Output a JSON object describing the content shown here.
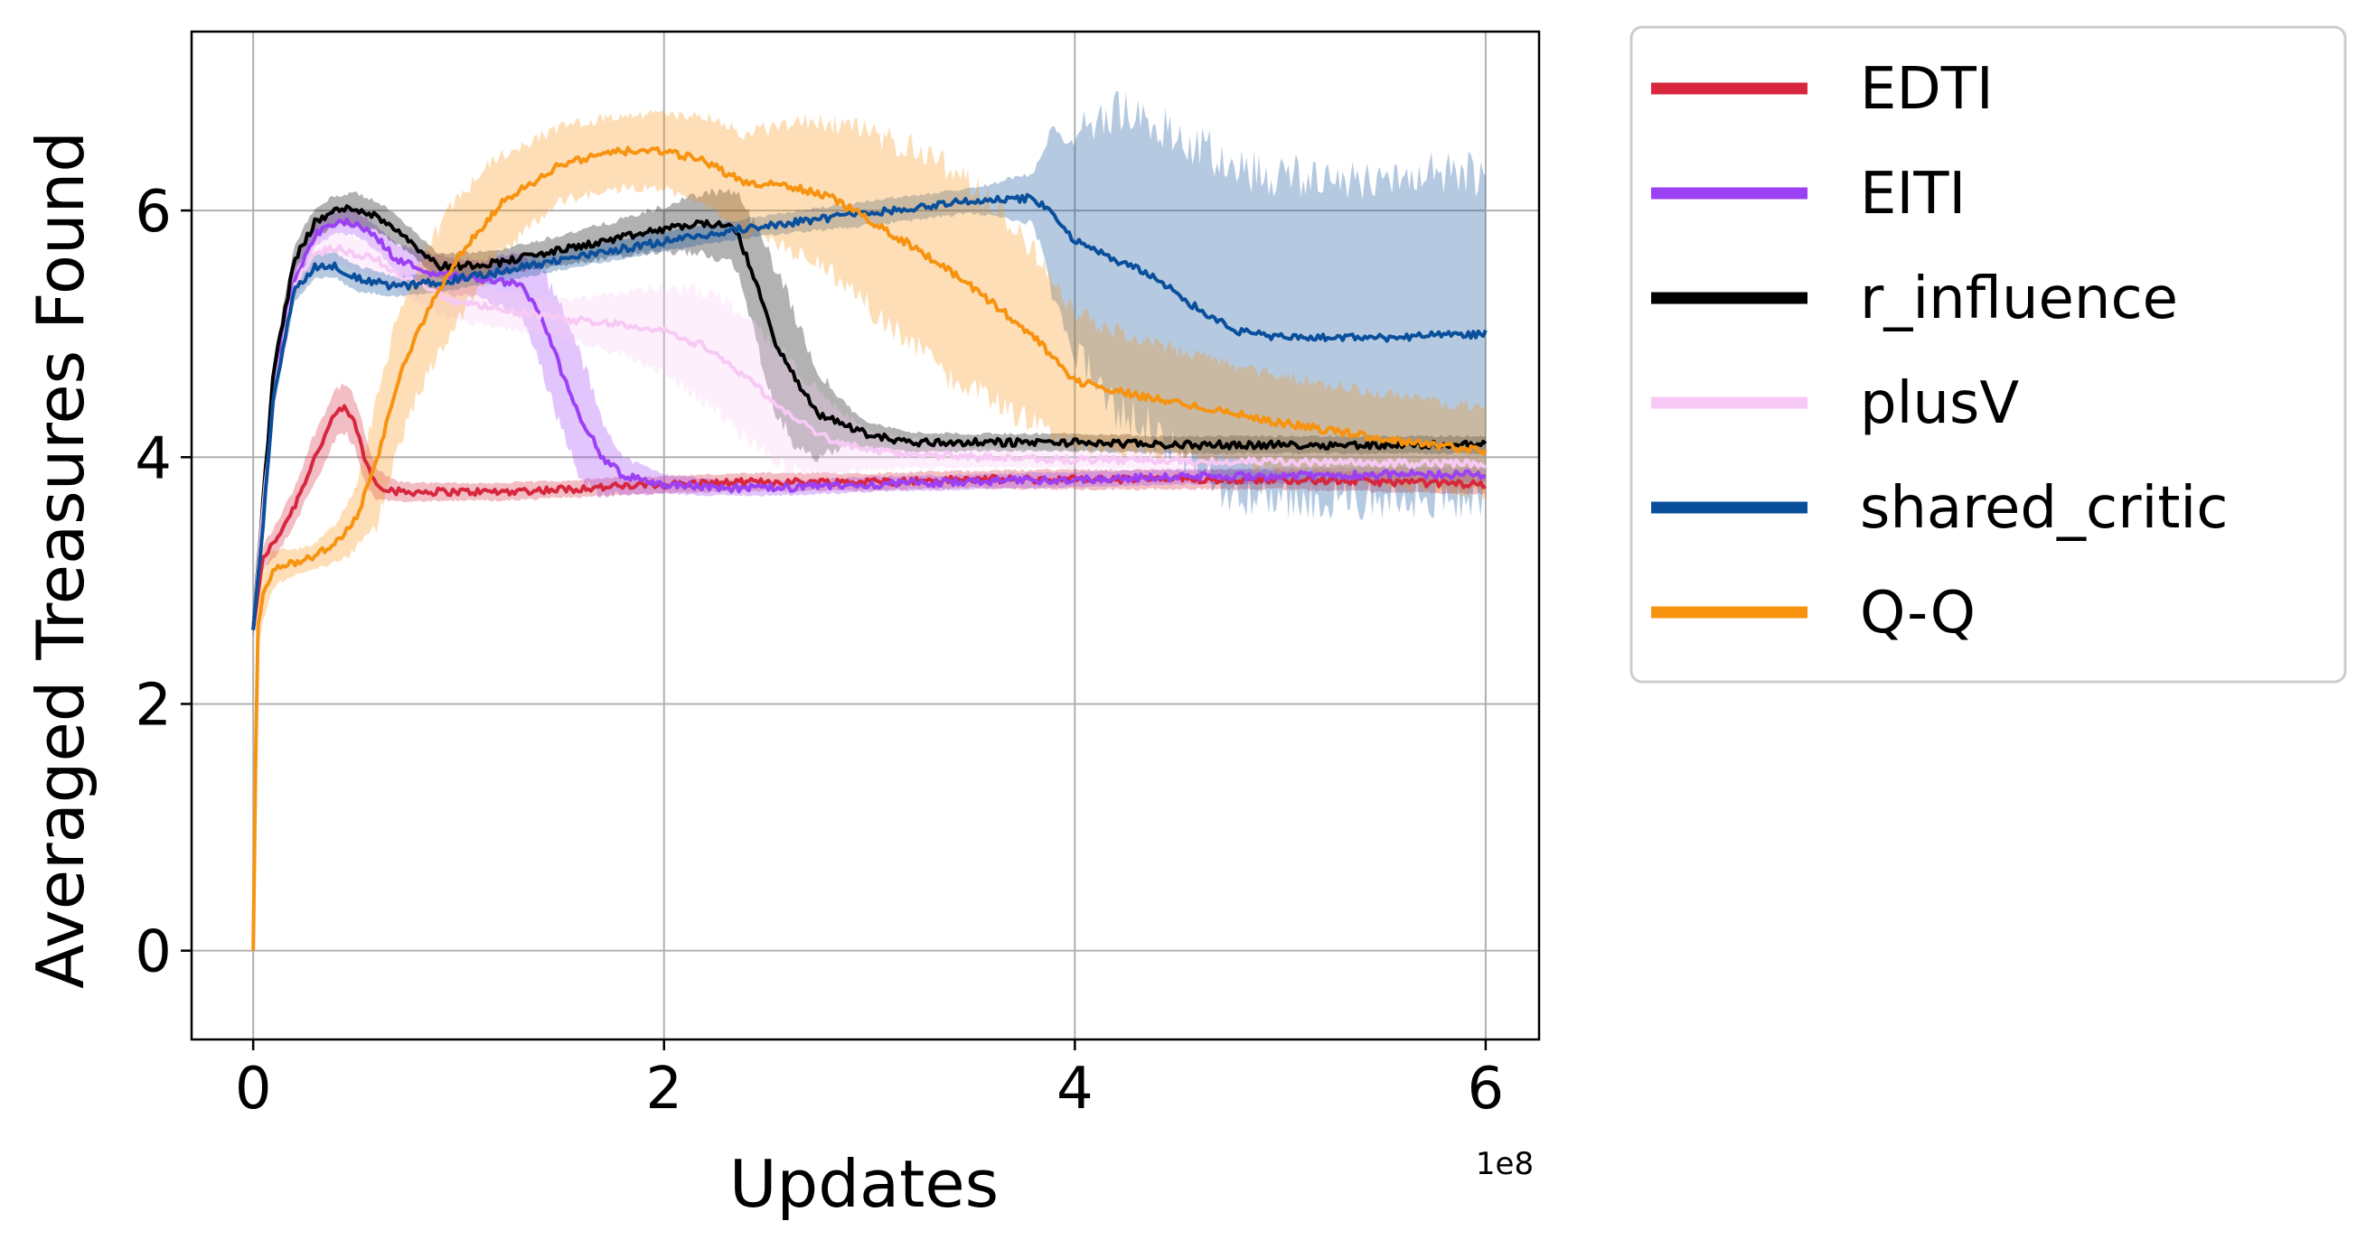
{
  "chart_data": {
    "type": "line",
    "title": "",
    "xlabel": "Updates",
    "ylabel": "Averaged Treasures Found",
    "x_offset_label": "1e8",
    "xlim": [
      -0.3,
      6.26
    ],
    "ylim": [
      -0.72,
      7.45
    ],
    "xticks": [
      0,
      2,
      4,
      6
    ],
    "xtick_labels": [
      "0",
      "2",
      "4",
      "6"
    ],
    "yticks": [
      0,
      2,
      4,
      6
    ],
    "ytick_labels": [
      "0",
      "2",
      "4",
      "6"
    ],
    "grid": true,
    "legend_position": "outside-right",
    "shaded_band": "variation across runs",
    "series": [
      {
        "name": "EDTI",
        "color": "#d7263d",
        "x": [
          0,
          0.05,
          0.1,
          0.2,
          0.3,
          0.4,
          0.45,
          0.5,
          0.55,
          0.6,
          0.7,
          0.9,
          1.2,
          1.5,
          2,
          2.5,
          3,
          3.5,
          4,
          4.5,
          5,
          5.5,
          6
        ],
        "y": [
          2.6,
          3.2,
          3.3,
          3.6,
          4.0,
          4.35,
          4.4,
          4.25,
          3.95,
          3.78,
          3.72,
          3.72,
          3.72,
          3.74,
          3.78,
          3.8,
          3.8,
          3.82,
          3.82,
          3.82,
          3.82,
          3.8,
          3.78
        ],
        "band": [
          0.05,
          0.1,
          0.12,
          0.15,
          0.2,
          0.2,
          0.2,
          0.2,
          0.2,
          0.12,
          0.08,
          0.07,
          0.07,
          0.07,
          0.07,
          0.07,
          0.07,
          0.07,
          0.08,
          0.08,
          0.08,
          0.08,
          0.08
        ]
      },
      {
        "name": "EITI",
        "color": "#9b40f5",
        "x": [
          0,
          0.05,
          0.1,
          0.2,
          0.3,
          0.4,
          0.5,
          0.6,
          0.7,
          0.9,
          1.1,
          1.3,
          1.4,
          1.5,
          1.6,
          1.7,
          1.8,
          2,
          2.3,
          2.6,
          3,
          3.5,
          4,
          4.5,
          5,
          5.5,
          6
        ],
        "y": [
          2.6,
          3.6,
          4.6,
          5.45,
          5.8,
          5.9,
          5.9,
          5.78,
          5.6,
          5.48,
          5.45,
          5.4,
          5.15,
          4.7,
          4.3,
          4.0,
          3.85,
          3.78,
          3.75,
          3.75,
          3.78,
          3.8,
          3.82,
          3.84,
          3.85,
          3.86,
          3.86
        ],
        "band": [
          0.05,
          0.15,
          0.15,
          0.12,
          0.1,
          0.08,
          0.1,
          0.1,
          0.12,
          0.15,
          0.15,
          0.25,
          0.4,
          0.5,
          0.5,
          0.3,
          0.15,
          0.08,
          0.06,
          0.06,
          0.06,
          0.06,
          0.06,
          0.06,
          0.06,
          0.06,
          0.06
        ]
      },
      {
        "name": "r_influence",
        "color": "#000000",
        "x": [
          0,
          0.05,
          0.1,
          0.2,
          0.3,
          0.4,
          0.5,
          0.6,
          0.7,
          0.8,
          0.9,
          1.0,
          1.2,
          1.5,
          1.8,
          2.0,
          2.2,
          2.35,
          2.45,
          2.55,
          2.65,
          2.75,
          2.9,
          3.0,
          3.2,
          3.5,
          4.0,
          4.5,
          5.0,
          5.5,
          6.0
        ],
        "y": [
          2.6,
          3.7,
          4.7,
          5.6,
          5.9,
          6.0,
          6.02,
          5.95,
          5.85,
          5.7,
          5.55,
          5.55,
          5.58,
          5.68,
          5.78,
          5.85,
          5.9,
          5.85,
          5.4,
          4.9,
          4.6,
          4.35,
          4.25,
          4.18,
          4.12,
          4.12,
          4.12,
          4.1,
          4.1,
          4.1,
          4.1
        ],
        "band": [
          0.05,
          0.1,
          0.1,
          0.12,
          0.12,
          0.12,
          0.12,
          0.12,
          0.12,
          0.1,
          0.1,
          0.1,
          0.1,
          0.12,
          0.15,
          0.18,
          0.25,
          0.3,
          0.45,
          0.6,
          0.5,
          0.35,
          0.15,
          0.1,
          0.08,
          0.07,
          0.07,
          0.07,
          0.07,
          0.07,
          0.07
        ]
      },
      {
        "name": "plusV",
        "color": "#f7c9f5",
        "x": [
          0,
          0.05,
          0.1,
          0.2,
          0.3,
          0.4,
          0.6,
          0.8,
          1.0,
          1.2,
          1.5,
          1.8,
          2.0,
          2.2,
          2.4,
          2.6,
          2.8,
          3.0,
          3.5,
          4.0,
          4.5,
          5.0,
          5.5,
          6.0
        ],
        "y": [
          2.6,
          3.6,
          4.5,
          5.4,
          5.65,
          5.7,
          5.6,
          5.4,
          5.25,
          5.2,
          5.12,
          5.08,
          5.02,
          4.9,
          4.65,
          4.35,
          4.15,
          4.05,
          4.0,
          3.98,
          3.97,
          3.96,
          3.95,
          3.95
        ],
        "band": [
          0.05,
          0.1,
          0.12,
          0.12,
          0.12,
          0.12,
          0.15,
          0.15,
          0.15,
          0.15,
          0.15,
          0.25,
          0.35,
          0.45,
          0.5,
          0.45,
          0.3,
          0.15,
          0.08,
          0.07,
          0.07,
          0.07,
          0.07,
          0.07
        ]
      },
      {
        "name": "shared_critic",
        "color": "#0a4f9c",
        "x": [
          0,
          0.05,
          0.1,
          0.2,
          0.3,
          0.4,
          0.5,
          0.7,
          0.9,
          1.2,
          1.5,
          2.0,
          2.5,
          3.0,
          3.5,
          3.8,
          3.9,
          4.0,
          4.2,
          4.4,
          4.6,
          4.8,
          5.0,
          5.5,
          6.0
        ],
        "y": [
          2.6,
          3.5,
          4.5,
          5.35,
          5.55,
          5.55,
          5.45,
          5.38,
          5.42,
          5.5,
          5.6,
          5.75,
          5.88,
          5.98,
          6.08,
          6.1,
          5.95,
          5.75,
          5.6,
          5.45,
          5.2,
          5.02,
          4.97,
          4.97,
          5.0
        ],
        "band": [
          0.05,
          0.1,
          0.12,
          0.1,
          0.1,
          0.1,
          0.1,
          0.08,
          0.08,
          0.08,
          0.08,
          0.08,
          0.08,
          0.1,
          0.1,
          0.2,
          0.7,
          0.9,
          1.2,
          1.25,
          1.3,
          1.35,
          1.3,
          1.3,
          1.3
        ]
      },
      {
        "name": "Q-Q",
        "color": "#f7930f",
        "x": [
          0,
          0.02,
          0.05,
          0.1,
          0.2,
          0.3,
          0.4,
          0.5,
          0.6,
          0.7,
          0.8,
          0.9,
          1.0,
          1.2,
          1.5,
          1.8,
          2.0,
          2.2,
          2.4,
          2.6,
          2.8,
          3.0,
          3.2,
          3.4,
          3.6,
          3.8,
          4.0,
          4.3,
          4.7,
          5.0,
          5.5,
          6.0
        ],
        "y": [
          0,
          2.6,
          2.9,
          3.1,
          3.15,
          3.2,
          3.3,
          3.5,
          3.95,
          4.6,
          5.0,
          5.35,
          5.62,
          6.05,
          6.38,
          6.48,
          6.48,
          6.4,
          6.22,
          6.2,
          6.12,
          5.92,
          5.72,
          5.5,
          5.25,
          4.98,
          4.62,
          4.5,
          4.38,
          4.28,
          4.15,
          4.05
        ],
        "band": [
          0,
          0.2,
          0.2,
          0.15,
          0.1,
          0.1,
          0.15,
          0.25,
          0.5,
          0.55,
          0.5,
          0.5,
          0.5,
          0.4,
          0.3,
          0.3,
          0.3,
          0.35,
          0.4,
          0.5,
          0.6,
          0.7,
          0.8,
          0.85,
          0.8,
          0.7,
          0.55,
          0.45,
          0.4,
          0.38,
          0.36,
          0.35
        ]
      }
    ]
  }
}
